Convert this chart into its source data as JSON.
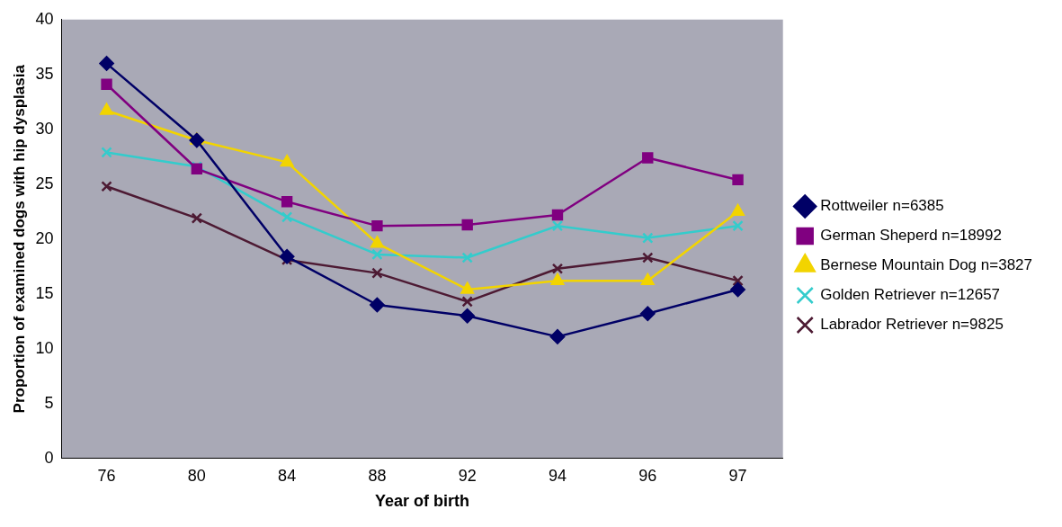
{
  "chart_data": {
    "type": "line",
    "xlabel": "Year of birth",
    "ylabel": "Proportion of examined dogs with hip dysplasia",
    "categories": [
      "76",
      "80",
      "84",
      "88",
      "92",
      "94",
      "96",
      "97"
    ],
    "ylim": [
      0,
      40
    ],
    "yticks": [
      0,
      5,
      10,
      15,
      20,
      25,
      30,
      35,
      40
    ],
    "grid": false,
    "legend": "right",
    "line_style": "solid",
    "series": [
      {
        "name": "Rottweiler n=6385",
        "color": "#000066",
        "marker": "diamond",
        "values": [
          36,
          29,
          18.4,
          14,
          13,
          11.1,
          13.2,
          15.4
        ]
      },
      {
        "name": "German Sheperd n=18992",
        "color": "#800080",
        "marker": "square",
        "values": [
          34.1,
          26.4,
          23.4,
          21.2,
          21.3,
          22.2,
          27.4,
          25.4
        ]
      },
      {
        "name": "Bernese Mountain Dog n=3827",
        "color": "#f2d400",
        "marker": "triangle",
        "values": [
          31.7,
          29,
          27,
          19.6,
          15.4,
          16.2,
          16.2,
          22.5
        ]
      },
      {
        "name": "Golden Retriever n=12657",
        "color": "#33cccc",
        "marker": "cross",
        "values": [
          27.9,
          26.6,
          22,
          18.6,
          18.3,
          21.2,
          20.1,
          21.2
        ]
      },
      {
        "name": "Labrador Retriever n=9825",
        "color": "#4d1a33",
        "marker": "cross",
        "values": [
          24.8,
          21.9,
          18.1,
          16.9,
          14.3,
          17.3,
          18.3,
          16.2
        ]
      }
    ]
  }
}
